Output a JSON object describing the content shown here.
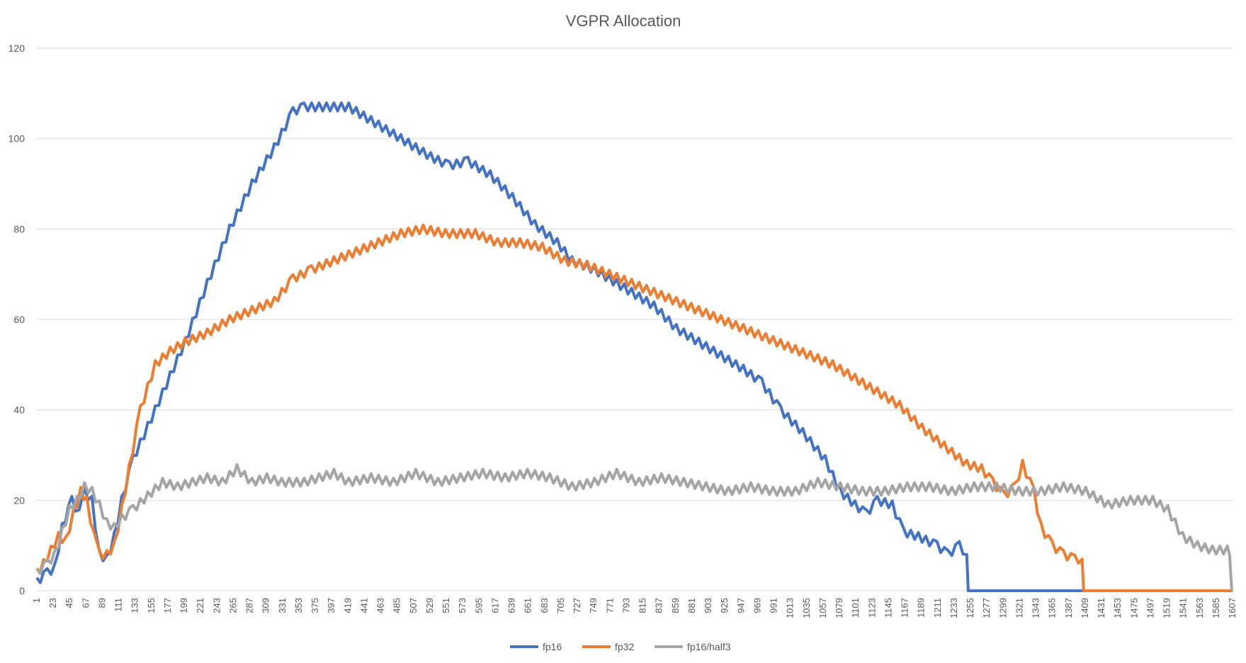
{
  "chart_data": {
    "type": "line",
    "title": "VGPR Allocation",
    "xlabel": "",
    "ylabel": "",
    "ylim": [
      0,
      120
    ],
    "yticks": [
      0,
      20,
      40,
      60,
      80,
      100,
      120
    ],
    "xlim": [
      1,
      1607
    ],
    "xticks": [
      1,
      23,
      45,
      67,
      89,
      111,
      133,
      155,
      177,
      199,
      221,
      243,
      265,
      287,
      309,
      331,
      353,
      375,
      397,
      419,
      441,
      463,
      485,
      507,
      529,
      551,
      573,
      595,
      617,
      639,
      661,
      683,
      705,
      727,
      749,
      771,
      793,
      815,
      837,
      859,
      881,
      903,
      925,
      947,
      969,
      991,
      1013,
      1035,
      1057,
      1079,
      1101,
      1123,
      1145,
      1167,
      1189,
      1211,
      1233,
      1255,
      1277,
      1299,
      1321,
      1343,
      1365,
      1387,
      1409,
      1431,
      1453,
      1475,
      1497,
      1519,
      1541,
      1563,
      1585,
      1607
    ],
    "legend_position": "bottom",
    "series": [
      {
        "name": "fp16",
        "color": "#4472c4",
        "points": [
          [
            1,
            2
          ],
          [
            15,
            4
          ],
          [
            25,
            5
          ],
          [
            35,
            14
          ],
          [
            48,
            20
          ],
          [
            58,
            17
          ],
          [
            65,
            22
          ],
          [
            75,
            20
          ],
          [
            85,
            8
          ],
          [
            95,
            7
          ],
          [
            105,
            12
          ],
          [
            115,
            20
          ],
          [
            130,
            29
          ],
          [
            160,
            40
          ],
          [
            200,
            55
          ],
          [
            230,
            68
          ],
          [
            260,
            80
          ],
          [
            290,
            90
          ],
          [
            320,
            98
          ],
          [
            345,
            106
          ],
          [
            360,
            107
          ],
          [
            390,
            107
          ],
          [
            420,
            107
          ],
          [
            440,
            105
          ],
          [
            470,
            102
          ],
          [
            500,
            99
          ],
          [
            530,
            96
          ],
          [
            555,
            94
          ],
          [
            580,
            95
          ],
          [
            610,
            92
          ],
          [
            640,
            87
          ],
          [
            670,
            81
          ],
          [
            700,
            77
          ],
          [
            720,
            73
          ],
          [
            750,
            71
          ],
          [
            790,
            67
          ],
          [
            830,
            63
          ],
          [
            860,
            58
          ],
          [
            890,
            55
          ],
          [
            920,
            52
          ],
          [
            950,
            49
          ],
          [
            975,
            46
          ],
          [
            1000,
            40
          ],
          [
            1030,
            35
          ],
          [
            1060,
            29
          ],
          [
            1080,
            22
          ],
          [
            1100,
            19
          ],
          [
            1115,
            17
          ],
          [
            1130,
            20
          ],
          [
            1150,
            19
          ],
          [
            1165,
            13
          ],
          [
            1185,
            12
          ],
          [
            1210,
            10
          ],
          [
            1225,
            8
          ],
          [
            1240,
            10
          ],
          [
            1250,
            8
          ],
          [
            1252,
            0
          ],
          [
            1409,
            0
          ]
        ]
      },
      {
        "name": "fp32",
        "color": "#ed7d31",
        "points": [
          [
            1,
            4
          ],
          [
            10,
            6
          ],
          [
            20,
            9
          ],
          [
            30,
            12
          ],
          [
            40,
            11
          ],
          [
            50,
            17
          ],
          [
            60,
            22
          ],
          [
            68,
            20
          ],
          [
            78,
            12
          ],
          [
            85,
            8
          ],
          [
            95,
            8
          ],
          [
            105,
            10
          ],
          [
            115,
            18
          ],
          [
            125,
            27
          ],
          [
            140,
            40
          ],
          [
            160,
            50
          ],
          [
            180,
            53
          ],
          [
            200,
            55
          ],
          [
            230,
            57
          ],
          [
            260,
            60
          ],
          [
            290,
            62
          ],
          [
            320,
            64
          ],
          [
            345,
            69
          ],
          [
            370,
            71
          ],
          [
            400,
            73
          ],
          [
            430,
            75
          ],
          [
            460,
            77
          ],
          [
            490,
            79
          ],
          [
            520,
            80
          ],
          [
            550,
            79
          ],
          [
            590,
            79
          ],
          [
            620,
            77
          ],
          [
            650,
            77
          ],
          [
            680,
            76
          ],
          [
            710,
            73
          ],
          [
            740,
            72
          ],
          [
            770,
            70
          ],
          [
            800,
            68
          ],
          [
            830,
            66
          ],
          [
            860,
            64
          ],
          [
            890,
            62
          ],
          [
            920,
            60
          ],
          [
            950,
            58
          ],
          [
            980,
            56
          ],
          [
            1010,
            54
          ],
          [
            1040,
            52
          ],
          [
            1070,
            50
          ],
          [
            1100,
            47
          ],
          [
            1130,
            44
          ],
          [
            1160,
            41
          ],
          [
            1190,
            36
          ],
          [
            1220,
            32
          ],
          [
            1250,
            28
          ],
          [
            1270,
            27
          ],
          [
            1285,
            24
          ],
          [
            1300,
            21
          ],
          [
            1315,
            23
          ],
          [
            1325,
            28
          ],
          [
            1340,
            22
          ],
          [
            1350,
            14
          ],
          [
            1365,
            10
          ],
          [
            1380,
            8
          ],
          [
            1395,
            7
          ],
          [
            1405,
            7
          ],
          [
            1407,
            0
          ],
          [
            1607,
            0
          ]
        ]
      },
      {
        "name": "fp16/half3",
        "color": "#a5a5a5",
        "points": [
          [
            1,
            4
          ],
          [
            15,
            6
          ],
          [
            25,
            8
          ],
          [
            35,
            13
          ],
          [
            45,
            18
          ],
          [
            55,
            20
          ],
          [
            65,
            23
          ],
          [
            75,
            22
          ],
          [
            85,
            19
          ],
          [
            95,
            15
          ],
          [
            105,
            14
          ],
          [
            115,
            16
          ],
          [
            130,
            18
          ],
          [
            150,
            21
          ],
          [
            170,
            24
          ],
          [
            190,
            23
          ],
          [
            210,
            24
          ],
          [
            230,
            25
          ],
          [
            250,
            24
          ],
          [
            270,
            27
          ],
          [
            290,
            24
          ],
          [
            310,
            25
          ],
          [
            330,
            24
          ],
          [
            360,
            24
          ],
          [
            380,
            25
          ],
          [
            400,
            26
          ],
          [
            420,
            24
          ],
          [
            450,
            25
          ],
          [
            480,
            24
          ],
          [
            510,
            26
          ],
          [
            540,
            24
          ],
          [
            570,
            25
          ],
          [
            600,
            26
          ],
          [
            630,
            25
          ],
          [
            660,
            26
          ],
          [
            690,
            25
          ],
          [
            720,
            23
          ],
          [
            750,
            24
          ],
          [
            780,
            26
          ],
          [
            810,
            24
          ],
          [
            840,
            25
          ],
          [
            870,
            24
          ],
          [
            900,
            23
          ],
          [
            930,
            22
          ],
          [
            960,
            23
          ],
          [
            990,
            22
          ],
          [
            1020,
            22
          ],
          [
            1050,
            24
          ],
          [
            1080,
            23
          ],
          [
            1110,
            22
          ],
          [
            1140,
            22
          ],
          [
            1170,
            23
          ],
          [
            1200,
            23
          ],
          [
            1230,
            22
          ],
          [
            1260,
            23
          ],
          [
            1290,
            23
          ],
          [
            1320,
            22
          ],
          [
            1350,
            22
          ],
          [
            1380,
            23
          ],
          [
            1410,
            22
          ],
          [
            1440,
            19
          ],
          [
            1470,
            20
          ],
          [
            1500,
            20
          ],
          [
            1520,
            18
          ],
          [
            1540,
            12
          ],
          [
            1560,
            10
          ],
          [
            1580,
            9
          ],
          [
            1600,
            9
          ],
          [
            1603,
            8
          ],
          [
            1606,
            0
          ]
        ]
      }
    ]
  }
}
